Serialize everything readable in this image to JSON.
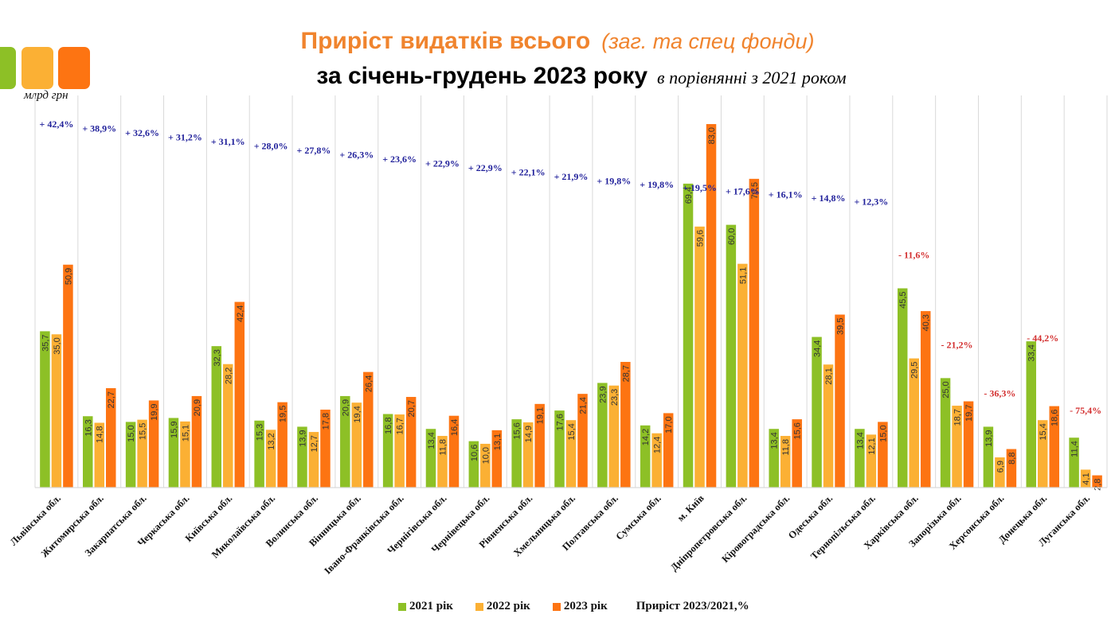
{
  "header": {
    "title_main": "Приріст видатків всього",
    "title_note": "(заг. та спец фонди)",
    "subtitle_main": "за січень-грудень 2023 року",
    "subtitle_note": "в порівнянні з 2021 роком",
    "units": "млрд грн"
  },
  "colors": {
    "y2021": "#8dc026",
    "y2022": "#fbb034",
    "y2023": "#fd7412",
    "positive_growth": "#1f1f9a",
    "negative_growth": "#d32f2f",
    "grid": "#d9d9d9",
    "value_label": "#333333"
  },
  "legend": {
    "items": [
      "2021 рік",
      "2022 рік",
      "2023 рік"
    ],
    "growth_label": "Приріст 2023/2021,%"
  },
  "chart_data": {
    "type": "bar",
    "title": "Приріст видатків всього (заг. та спец фонди) за січень-грудень 2023 року в порівнянні з 2021 роком",
    "xlabel": "",
    "ylabel": "млрд грн",
    "ylim": [
      0,
      85
    ],
    "grid": false,
    "legend_position": "bottom",
    "categories": [
      "Львівська обл.",
      "Житомирська обл.",
      "Закарпатська обл.",
      "Черкаська обл.",
      "Київська обл.",
      "Миколаївська обл.",
      "Волинська обл.",
      "Вінницька обл.",
      "Івано-Франківська обл.",
      "Чернігівська обл.",
      "Чернівецька обл.",
      "Рівненська обл.",
      "Хмельницька обл.",
      "Полтавська обл.",
      "Сумська обл.",
      "м. Київ",
      "Дніпропетровська обл.",
      "Кіровоградська обл.",
      "Одеська обл.",
      "Тернопільська обл.",
      "Харківська обл.",
      "Запорізька обл.",
      "Херсонська обл.",
      "Донецька обл.",
      "Луганська обл."
    ],
    "series": [
      {
        "name": "2021 рік",
        "values": [
          35.7,
          16.3,
          15.0,
          15.9,
          32.3,
          15.3,
          13.9,
          20.9,
          16.8,
          13.4,
          10.6,
          15.6,
          17.6,
          23.9,
          14.2,
          69.4,
          60.0,
          13.4,
          34.4,
          13.4,
          45.5,
          25.0,
          13.9,
          33.4,
          11.4
        ]
      },
      {
        "name": "2022 рік",
        "values": [
          35.0,
          14.8,
          15.5,
          15.1,
          28.2,
          13.2,
          12.7,
          19.4,
          16.7,
          11.8,
          10.0,
          14.9,
          15.4,
          23.3,
          12.4,
          59.6,
          51.1,
          11.8,
          28.1,
          12.1,
          29.5,
          18.7,
          6.9,
          15.4,
          4.1
        ]
      },
      {
        "name": "2023 рік",
        "values": [
          50.9,
          22.7,
          19.9,
          20.9,
          42.4,
          19.5,
          17.8,
          26.4,
          20.7,
          16.4,
          13.1,
          19.1,
          21.4,
          28.7,
          17.0,
          83.0,
          70.5,
          15.6,
          39.5,
          15.0,
          40.3,
          19.7,
          8.8,
          18.6,
          2.8
        ]
      }
    ],
    "value_labels": {
      "2021 рік": [
        "35,7",
        "16,3",
        "15,0",
        "15,9",
        "32,3",
        "15,3",
        "13,9",
        "20,9",
        "16,8",
        "13,4",
        "10,6",
        "15,6",
        "17,6",
        "23,9",
        "14,2",
        "69,4",
        "60,0",
        "13,4",
        "34,4",
        "13,4",
        "45,5",
        "25,0",
        "13,9",
        "33,4",
        "11,4"
      ],
      "2022 рік": [
        "35,0",
        "14,8",
        "15,5",
        "15,1",
        "28,2",
        "13,2",
        "12,7",
        "19,4",
        "16,7",
        "11,8",
        "10,0",
        "14,9",
        "15,4",
        "23,3",
        "12,4",
        "59,6",
        "51,1",
        "11,8",
        "28,1",
        "12,1",
        "29,5",
        "18,7",
        "6,9",
        "15,4",
        "4,1"
      ],
      "2023 рік": [
        "50,9",
        "22,7",
        "19,9",
        "20,9",
        "42,4",
        "19,5",
        "17,8",
        "26,4",
        "20,7",
        "16,4",
        "13,1",
        "19,1",
        "21,4",
        "28,7",
        "17,0",
        "83,0",
        "70,5",
        "15,6",
        "39,5",
        "15,0",
        "40,3",
        "19,7",
        "8,8",
        "18,6",
        "2,8"
      ]
    },
    "growth_2023_vs_2021_pct": [
      42.4,
      38.9,
      32.6,
      31.2,
      31.1,
      28.0,
      27.8,
      26.3,
      23.6,
      22.9,
      22.9,
      22.1,
      21.9,
      19.8,
      19.8,
      19.5,
      17.6,
      16.1,
      14.8,
      12.3,
      -11.6,
      -21.2,
      -36.3,
      -44.2,
      -75.4
    ],
    "growth_labels": [
      "+ 42,4%",
      "+ 38,9%",
      "+ 32,6%",
      "+ 31,2%",
      "+ 31,1%",
      "+ 28,0%",
      "+ 27,8%",
      "+ 26,3%",
      "+ 23,6%",
      "+ 22,9%",
      "+ 22,9%",
      "+ 22,1%",
      "+ 21,9%",
      "+ 19,8%",
      "+ 19,8%",
      "+ 19,5%",
      "+ 17,6%",
      "+ 16,1%",
      "+ 14,8%",
      "+ 12,3%",
      "- 11,6%",
      "- 21,2%",
      "- 36,3%",
      "- 44,2%",
      "- 75,4%"
    ]
  }
}
